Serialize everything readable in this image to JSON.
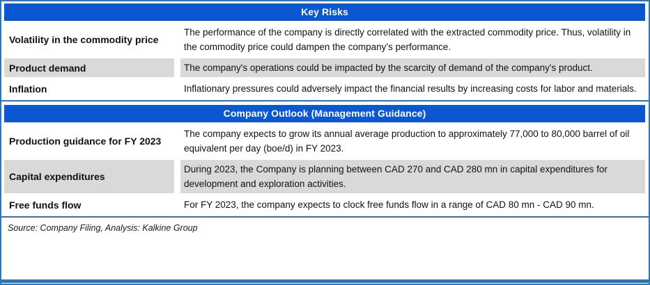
{
  "colors": {
    "accent_blue": "#0b57d2",
    "line_blue": "#2e75b6",
    "shaded_gray": "#d9d9d9",
    "text_color": "#111111"
  },
  "sections": [
    {
      "header": "Key Risks",
      "rows": [
        {
          "label": "Volatility in the commodity price",
          "text": "The performance of the company is directly correlated with the extracted commodity price. Thus, volatility in the commodity price could dampen the company’s performance."
        },
        {
          "label": "Product demand",
          "text": "The company's operations could be impacted by the scarcity of demand of the company's product."
        },
        {
          "label": "Inflation",
          "text": "Inflationary pressures could adversely impact the financial results by increasing costs for labor and materials."
        }
      ]
    },
    {
      "header": "Company Outlook (Management Guidance)",
      "rows": [
        {
          "label": "Production guidance for FY 2023",
          "text": "The company expects to grow its annual average production to approximately 77,000 to 80,000 barrel of oil equivalent per day (boe/d) in FY 2023."
        },
        {
          "label": "Capital expenditures",
          "text": "During 2023, the Company is planning between CAD 270 and CAD 280 mn in capital expenditures for development and exploration activities."
        },
        {
          "label": "Free funds flow",
          "text": "For FY 2023, the company expects to clock free funds flow in a range of CAD 80 mn - CAD 90 mn."
        }
      ]
    }
  ],
  "footer": {
    "source": "Source: Company Filing, Analysis: Kalkine Group"
  }
}
